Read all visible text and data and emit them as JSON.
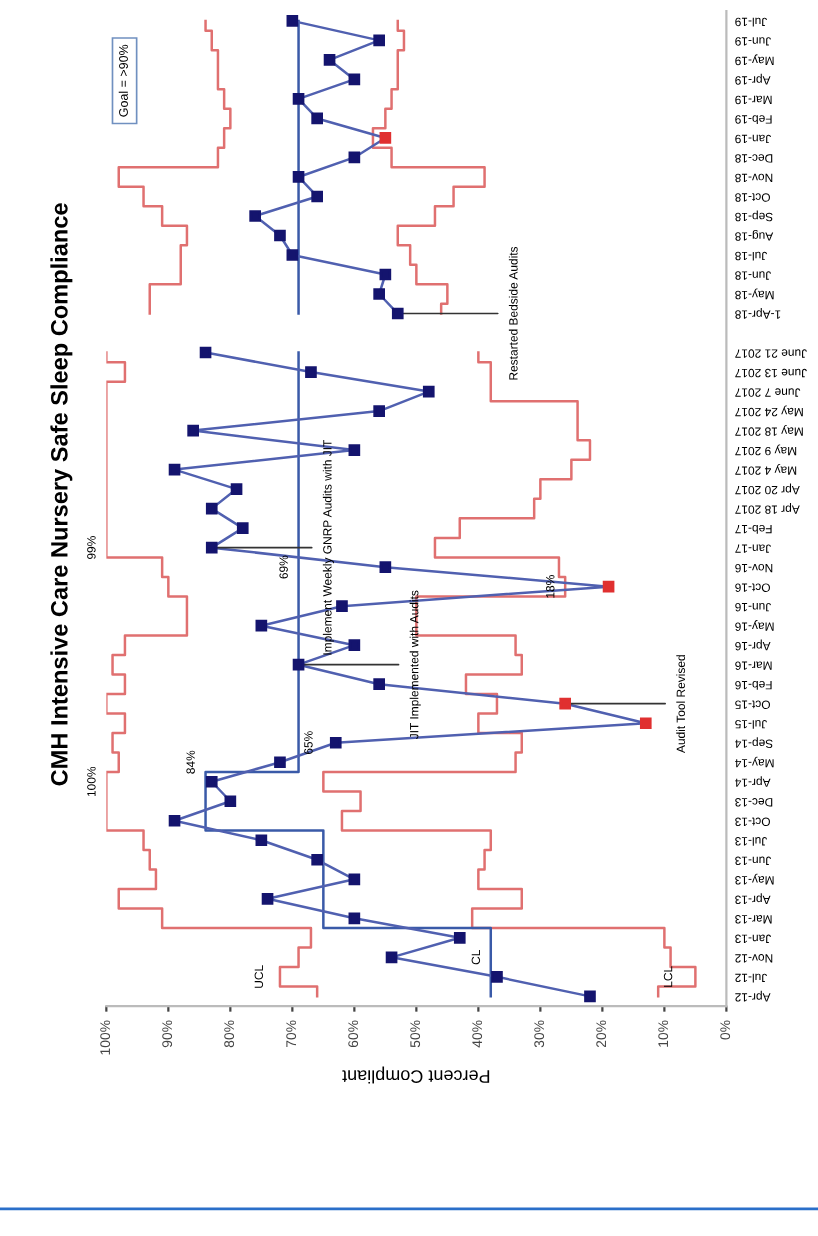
{
  "chart_data": {
    "type": "line",
    "orientation": "horizontal",
    "title": "CMH Intensive Care Nursery Safe Sleep Compliance",
    "xlabel": "Percent Compliant",
    "categories": [
      "Jul-19",
      "Jun-19",
      "May-19",
      "Apr-19",
      "Mar-19",
      "Feb-19",
      "Jan-19",
      "Dec-18",
      "Nov-18",
      "Oct-18",
      "Sep-18",
      "Aug-18",
      "Jul-18",
      "Jun-18",
      "May-18",
      "1-Apr-18",
      null,
      "June 21 2017",
      "June 13 2017",
      "June 7 2017",
      "May 24 2017",
      "May 18 2017",
      "May 9 2017",
      "May 4 2017",
      "Apr 20 2017",
      "Apr 18 2017",
      "Feb-17",
      "Jan-17",
      "Nov-16",
      "Oct-16",
      "Jun-16",
      "May-16",
      "Apr-16",
      "Mar-16",
      "Feb-16",
      "Oct-15",
      "Jul-15",
      "Sep-14",
      "May-14",
      "Apr-14",
      "Dec-13",
      "Oct-13",
      "Jul-13",
      "Jun-13",
      "May-13",
      "Apr-13",
      "Mar-13",
      "Jan-13",
      "Nov-12",
      "Jul-12",
      "Apr-12"
    ],
    "series": [
      {
        "type": "step",
        "color": "#e07070",
        "values": [
          84,
          83,
          82,
          82,
          81,
          80,
          81,
          82,
          98,
          94,
          91,
          87,
          88,
          88,
          93,
          93,
          null,
          100,
          97,
          100,
          100,
          100,
          100,
          100,
          100,
          100,
          100,
          100,
          91,
          90,
          87,
          87,
          97,
          99,
          97,
          100,
          97,
          99,
          98,
          100,
          100,
          100,
          94,
          93,
          92,
          98,
          91,
          67,
          69,
          72,
          66
        ]
      },
      {
        "type": "step",
        "color": "#e07070",
        "values": [
          53,
          52,
          53,
          53,
          54,
          55,
          57,
          54,
          39,
          44,
          47,
          53,
          51,
          50,
          45,
          46,
          null,
          40,
          38,
          38,
          24,
          24,
          22,
          25,
          30,
          31,
          43,
          47,
          27,
          26,
          50,
          50,
          34,
          33,
          42,
          37,
          40,
          33,
          34,
          65,
          59,
          62,
          38,
          39,
          40,
          33,
          41,
          10,
          9,
          5,
          11
        ]
      },
      {
        "type": "step",
        "color": "#3a5aa8",
        "values": [
          69,
          69,
          69,
          69,
          69,
          69,
          69,
          69,
          69,
          69,
          69,
          69,
          69,
          69,
          69,
          69,
          null,
          69,
          69,
          69,
          69,
          69,
          69,
          69,
          69,
          69,
          69,
          69,
          69,
          69,
          69,
          69,
          69,
          69,
          69,
          69,
          69,
          69,
          69,
          84,
          84,
          84,
          65,
          65,
          65,
          65,
          65,
          38,
          38,
          38,
          38
        ]
      },
      {
        "type": "line",
        "color": "#5060b0",
        "marker": "square",
        "colors": [
          "#14146e",
          "#14146e",
          "#14146e",
          "#14146e",
          "#14146e",
          "#14146e",
          "#e03030",
          "#14146e",
          "#14146e",
          "#14146e",
          "#14146e",
          "#14146e",
          "#14146e",
          "#14146e",
          "#14146e",
          "#14146e",
          null,
          "#14146e",
          "#14146e",
          "#14146e",
          "#14146e",
          "#14146e",
          "#14146e",
          "#14146e",
          "#14146e",
          "#14146e",
          "#14146e",
          "#14146e",
          "#14146e",
          "#e03030",
          "#14146e",
          "#14146e",
          "#14146e",
          "#14146e",
          "#14146e",
          "#e03030",
          "#e03030",
          "#14146e",
          "#14146e",
          "#14146e",
          "#14146e",
          "#14146e",
          "#14146e",
          "#14146e",
          "#14146e",
          "#14146e",
          "#14146e",
          "#14146e",
          "#14146e",
          "#14146e",
          "#14146e"
        ],
        "values": [
          70,
          56,
          64,
          60,
          69,
          66,
          55,
          60,
          69,
          66,
          76,
          72,
          70,
          55,
          56,
          53,
          null,
          84,
          67,
          48,
          56,
          86,
          60,
          89,
          79,
          83,
          78,
          83,
          55,
          19,
          62,
          75,
          60,
          69,
          56,
          26,
          13,
          63,
          72,
          83,
          80,
          89,
          75,
          66,
          60,
          74,
          60,
          43,
          54,
          37,
          22
        ]
      }
    ],
    "xlim": [
      100,
      0
    ],
    "xticks": [
      {
        "value": 100,
        "label": "100%"
      },
      {
        "value": 90,
        "label": "90%"
      },
      {
        "value": 80,
        "label": "80%"
      },
      {
        "value": 70,
        "label": "70%"
      },
      {
        "value": 60,
        "label": "60%"
      },
      {
        "value": 50,
        "label": "50%"
      },
      {
        "value": 40,
        "label": "40%"
      },
      {
        "value": 30,
        "label": "30%"
      },
      {
        "value": 20,
        "label": "20%"
      },
      {
        "value": 10,
        "label": "10%"
      },
      {
        "value": 0,
        "label": "0%"
      }
    ],
    "grid": false,
    "annotations": [
      "Goal = >90%",
      {
        "text": "Restarted Bedside Audits",
        "x": 53,
        "y": "1-Apr-18"
      },
      {
        "text": "Implement Weekly GNRP Audits with JIT",
        "x": 83,
        "y": "Jan-17"
      },
      {
        "text": "JIT Implemented with Audits",
        "x": 69,
        "y": "Mar-16"
      },
      {
        "text": "Audit Tool Revised",
        "x": 26,
        "y": "Oct-15"
      },
      {
        "text": "UCL",
        "x": 73,
        "y": "Jul-12"
      },
      {
        "text": "CL",
        "x": 38,
        "y": "Nov-12"
      },
      {
        "text": "LCL",
        "x": 7,
        "y": "Jul-12"
      },
      {
        "text": "84%",
        "x": 84,
        "y": "May-14"
      },
      {
        "text": "65%",
        "x": 65,
        "y": "Sep-14"
      },
      {
        "text": "69%",
        "x": 69,
        "y": "Nov-16"
      },
      {
        "text": "100%",
        "x": 100,
        "y": "Apr-14"
      },
      {
        "text": "99%",
        "x": 100,
        "y": "Jan-17"
      },
      {
        "text": "18%",
        "x": 26,
        "y": "Oct-16"
      }
    ]
  }
}
